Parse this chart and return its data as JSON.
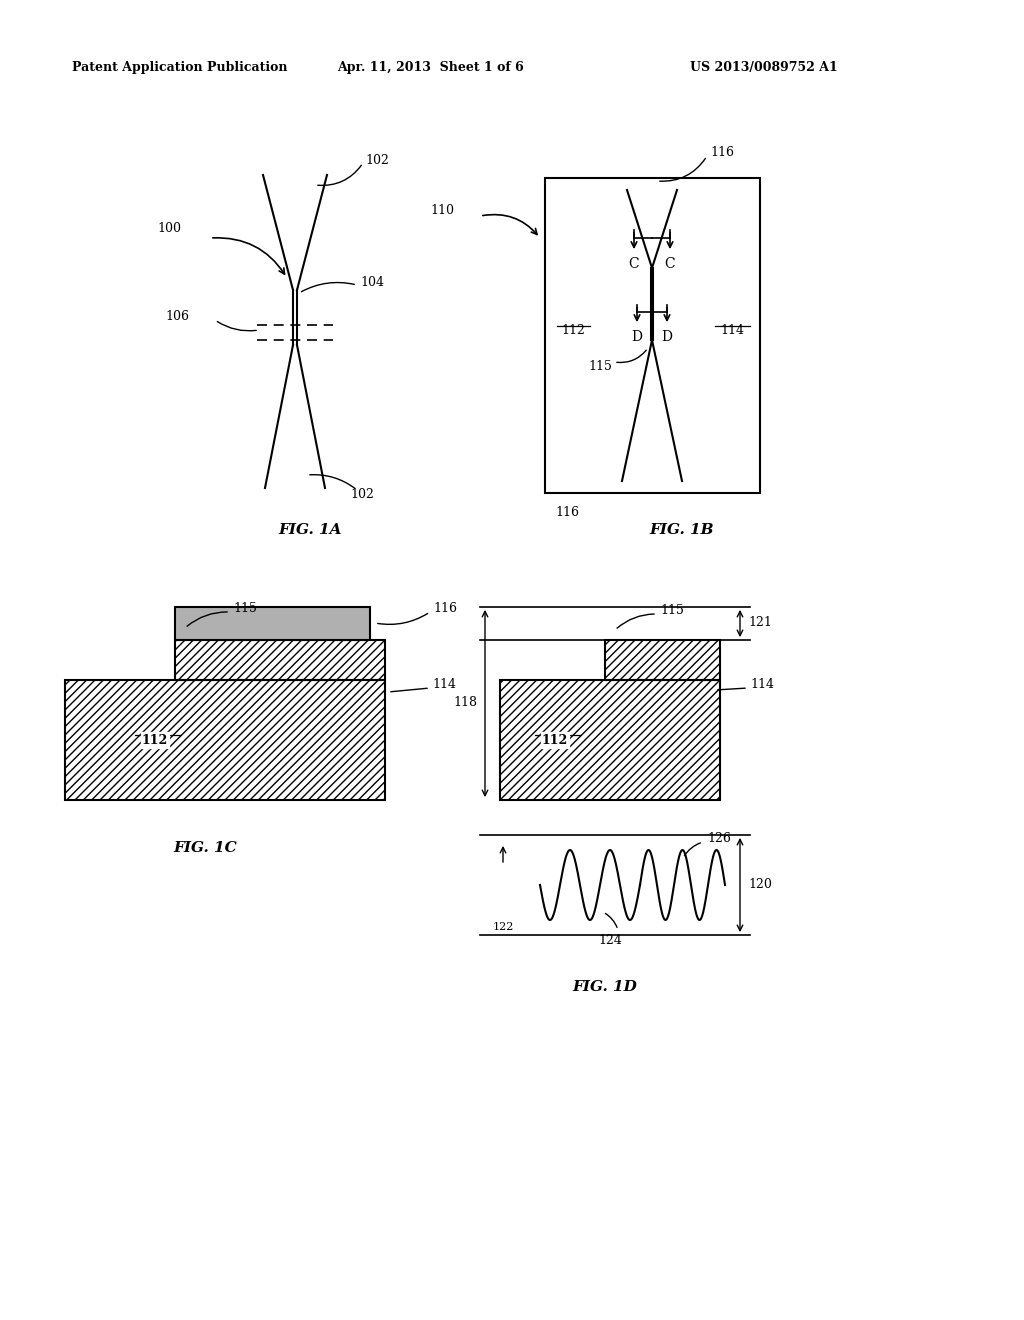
{
  "header_left": "Patent Application Publication",
  "header_mid": "Apr. 11, 2013  Sheet 1 of 6",
  "header_right": "US 2013/0089752 A1",
  "fig1a_label": "FIG. 1A",
  "fig1b_label": "FIG. 1B",
  "fig1c_label": "FIG. 1C",
  "fig1d_label": "FIG. 1D",
  "bg_color": "#ffffff",
  "line_color": "#000000",
  "gray_fill": "#b0b0b0"
}
